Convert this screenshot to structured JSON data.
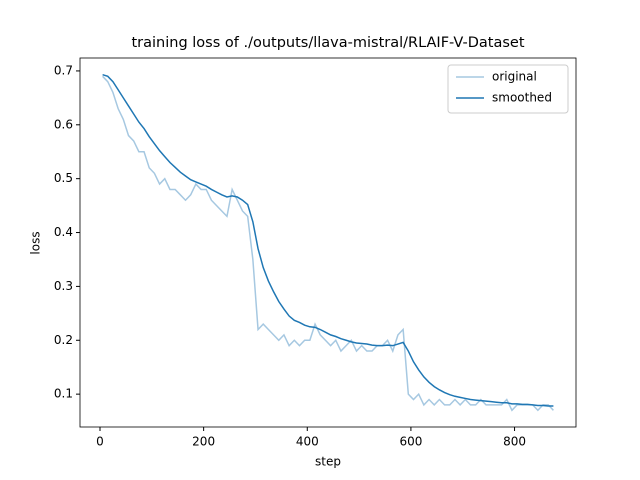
{
  "chart_data": {
    "type": "line",
    "title": "training loss of ./outputs/llava-mistral/RLAIF-V-Dataset",
    "x_label": "step",
    "y_label": "loss",
    "x": [
      5,
      15,
      25,
      35,
      45,
      55,
      65,
      75,
      85,
      95,
      105,
      115,
      125,
      135,
      145,
      155,
      165,
      175,
      185,
      195,
      205,
      215,
      225,
      235,
      245,
      255,
      265,
      275,
      285,
      295,
      305,
      315,
      325,
      335,
      345,
      355,
      365,
      375,
      385,
      395,
      405,
      415,
      425,
      435,
      445,
      455,
      465,
      475,
      485,
      495,
      505,
      515,
      525,
      535,
      545,
      555,
      565,
      575,
      585,
      595,
      605,
      615,
      625,
      635,
      645,
      655,
      665,
      675,
      685,
      695,
      705,
      715,
      725,
      735,
      745,
      755,
      765,
      775,
      785,
      795,
      805,
      815,
      825,
      835,
      845,
      855,
      865,
      875
    ],
    "series": [
      {
        "name": "original",
        "color": "#a6c8e1",
        "values": [
          0.69,
          0.68,
          0.66,
          0.63,
          0.61,
          0.58,
          0.57,
          0.55,
          0.55,
          0.52,
          0.51,
          0.49,
          0.5,
          0.48,
          0.48,
          0.47,
          0.46,
          0.47,
          0.49,
          0.48,
          0.48,
          0.46,
          0.45,
          0.44,
          0.43,
          0.48,
          0.46,
          0.44,
          0.43,
          0.35,
          0.22,
          0.23,
          0.22,
          0.21,
          0.2,
          0.21,
          0.19,
          0.2,
          0.19,
          0.2,
          0.2,
          0.23,
          0.21,
          0.2,
          0.19,
          0.2,
          0.18,
          0.19,
          0.2,
          0.18,
          0.19,
          0.18,
          0.18,
          0.19,
          0.19,
          0.2,
          0.18,
          0.21,
          0.22,
          0.1,
          0.09,
          0.1,
          0.08,
          0.09,
          0.08,
          0.09,
          0.08,
          0.08,
          0.09,
          0.08,
          0.09,
          0.08,
          0.08,
          0.09,
          0.08,
          0.08,
          0.08,
          0.08,
          0.09,
          0.07,
          0.08,
          0.08,
          0.08,
          0.08,
          0.07,
          0.08,
          0.08,
          0.07
        ]
      },
      {
        "name": "smoothed",
        "color": "#1f77b4",
        "values": [
          0.693,
          0.69,
          0.68,
          0.665,
          0.65,
          0.635,
          0.62,
          0.605,
          0.593,
          0.578,
          0.565,
          0.552,
          0.541,
          0.53,
          0.521,
          0.512,
          0.505,
          0.498,
          0.494,
          0.49,
          0.486,
          0.48,
          0.475,
          0.47,
          0.466,
          0.468,
          0.466,
          0.46,
          0.452,
          0.42,
          0.37,
          0.335,
          0.31,
          0.29,
          0.272,
          0.258,
          0.245,
          0.237,
          0.233,
          0.228,
          0.225,
          0.224,
          0.22,
          0.215,
          0.21,
          0.207,
          0.203,
          0.2,
          0.197,
          0.195,
          0.194,
          0.193,
          0.191,
          0.19,
          0.19,
          0.191,
          0.19,
          0.193,
          0.196,
          0.18,
          0.16,
          0.145,
          0.132,
          0.122,
          0.114,
          0.108,
          0.103,
          0.099,
          0.096,
          0.094,
          0.092,
          0.09,
          0.089,
          0.088,
          0.087,
          0.086,
          0.085,
          0.084,
          0.084,
          0.082,
          0.082,
          0.081,
          0.081,
          0.08,
          0.079,
          0.079,
          0.078,
          0.078
        ]
      }
    ],
    "xlim": [
      -38.6,
      918.6
    ],
    "ylim": [
      0.039,
      0.724
    ],
    "xticks": [
      0,
      200,
      400,
      600,
      800
    ],
    "yticks": [
      0.1,
      0.2,
      0.3,
      0.4,
      0.5,
      0.6,
      0.7
    ],
    "legend": "upper right"
  }
}
